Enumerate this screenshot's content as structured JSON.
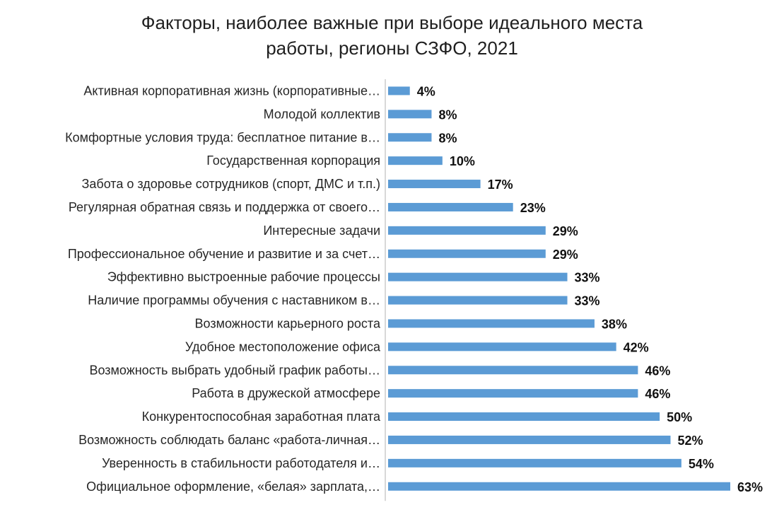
{
  "chart_data": {
    "type": "bar",
    "orientation": "horizontal",
    "title_lines": [
      "Факторы, наиболее важные при выборе идеального места",
      "работы, регионы СЗФО, 2021"
    ],
    "categories": [
      "Активная корпоративная жизнь (корпоративные…",
      "Молодой коллектив",
      "Комфортные условия труда: бесплатное питание в…",
      "Государственная корпорация",
      "Забота о здоровье сотрудников (спорт, ДМС и т.п.)",
      "Регулярная обратная связь и поддержка от своего…",
      "Интересные задачи",
      "Профессиональное обучение и развитие и за счет…",
      "Эффективно выстроенные рабочие процессы",
      "Наличие программы обучения с наставником в…",
      "Возможности карьерного роста",
      "Удобное местоположение офиса",
      "Возможность выбрать удобный график работы…",
      "Работа в дружеской атмосфере",
      "Конкурентоспособная заработная плата",
      "Возможность соблюдать баланс «работа-личная…",
      "Уверенность в стабильности работодателя и…",
      "Официальное оформление, «белая» зарплата,…"
    ],
    "values": [
      4,
      8,
      8,
      10,
      17,
      23,
      29,
      29,
      33,
      33,
      38,
      42,
      46,
      46,
      50,
      52,
      54,
      63
    ],
    "value_labels": [
      "4%",
      "8%",
      "8%",
      "10%",
      "17%",
      "23%",
      "29%",
      "29%",
      "33%",
      "33%",
      "38%",
      "42%",
      "46%",
      "46%",
      "50%",
      "52%",
      "54%",
      "63%"
    ],
    "unit": "%",
    "xlim": [
      0,
      63
    ],
    "grid": false,
    "legend": "none",
    "bar_color": "#5b9bd5",
    "axis_color": "#bfbfbf"
  }
}
